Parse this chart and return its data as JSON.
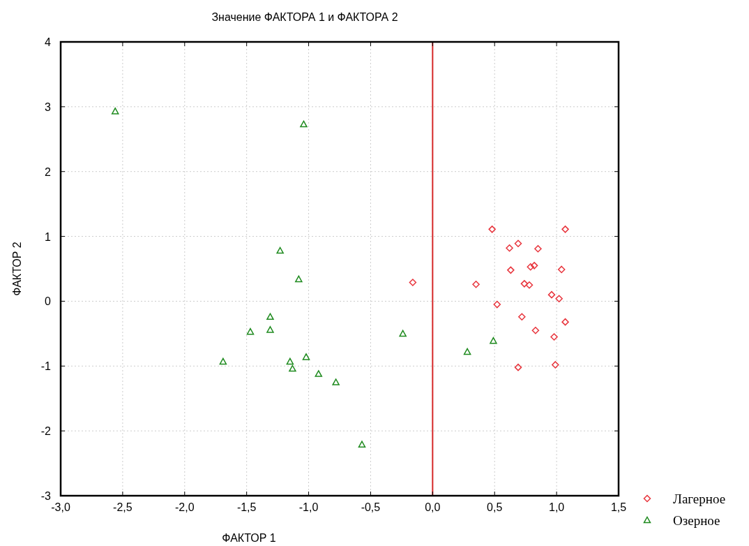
{
  "chart_data": {
    "type": "scatter",
    "title": "Значение ФАКТОРА 1 и ФАКТОРА 2",
    "xlabel": "ФАКТОР 1",
    "ylabel": "ФАКТОР 2",
    "xlim": [
      -3,
      1.5
    ],
    "ylim": [
      -3,
      4
    ],
    "xticks": [
      {
        "value": -3,
        "label": "-3,0"
      },
      {
        "value": -2.5,
        "label": "-2,5"
      },
      {
        "value": -2,
        "label": "-2,0"
      },
      {
        "value": -1.5,
        "label": "-1,5"
      },
      {
        "value": -1,
        "label": "-1,0"
      },
      {
        "value": -0.5,
        "label": "-0,5"
      },
      {
        "value": 0,
        "label": "0,0"
      },
      {
        "value": 0.5,
        "label": "0,5"
      },
      {
        "value": 1,
        "label": "1,0"
      },
      {
        "value": 1.5,
        "label": "1,5"
      }
    ],
    "yticks": [
      -3,
      -2,
      -1,
      0,
      1,
      2,
      3,
      4
    ],
    "grid": true,
    "legend": "bottom right",
    "ref_lines": [
      {
        "axis": "x",
        "value": 0,
        "color": "#d62728"
      }
    ],
    "series": [
      {
        "name": "Лагерное",
        "color": "#e8343c",
        "marker": "diamond",
        "x": [
          0.48,
          1.07,
          0.62,
          0.69,
          0.85,
          0.63,
          0.79,
          0.82,
          1.04,
          -0.16,
          0.35,
          0.74,
          0.78,
          0.96,
          1.02,
          0.52,
          0.72,
          1.07,
          0.83,
          0.98,
          0.69,
          0.99
        ],
        "values": [
          1.11,
          1.11,
          0.82,
          0.89,
          0.81,
          0.48,
          0.53,
          0.55,
          0.49,
          0.29,
          0.26,
          0.27,
          0.25,
          0.1,
          0.04,
          -0.05,
          -0.24,
          -0.32,
          -0.45,
          -0.55,
          -1.02,
          -0.98
        ]
      },
      {
        "name": "Озерное",
        "color": "#1e8a1e",
        "marker": "triangle",
        "x": [
          -2.56,
          -1.04,
          -1.23,
          -1.08,
          -1.31,
          -1.31,
          -1.47,
          -0.24,
          -1.69,
          -1.15,
          -1.13,
          -1.02,
          -0.92,
          -0.78,
          -0.57,
          0.28,
          0.49
        ],
        "values": [
          2.93,
          2.73,
          0.78,
          0.34,
          -0.24,
          -0.44,
          -0.47,
          -0.5,
          -0.93,
          -0.93,
          -1.04,
          -0.86,
          -1.12,
          -1.25,
          -2.21,
          -0.78,
          -0.61
        ]
      }
    ]
  }
}
